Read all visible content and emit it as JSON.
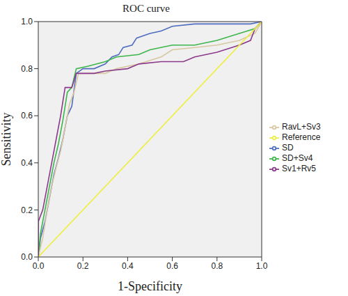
{
  "chart_data": {
    "type": "line",
    "title": "ROC curve",
    "xlabel": "1-Specificity",
    "ylabel": "Sensitivity",
    "xlim": [
      0,
      1
    ],
    "ylim": [
      0,
      1
    ],
    "xticks": [
      {
        "value": 0,
        "label": "0.0"
      },
      0.2,
      0.4,
      0.6,
      0.8,
      {
        "value": 1,
        "label": "1.0"
      }
    ],
    "yticks": [
      {
        "value": 0,
        "label": "0.0"
      },
      0.2,
      0.4,
      0.6,
      0.8,
      {
        "value": 1,
        "label": "1.0"
      }
    ],
    "grid": false,
    "legend": "right",
    "series": [
      {
        "name": "SD",
        "color": "#4f6dc0",
        "x": [
          0,
          0.01,
          0.03,
          0.05,
          0.07,
          0.09,
          0.11,
          0.13,
          0.15,
          0.17,
          0.2,
          0.25,
          0.3,
          0.33,
          0.36,
          0.38,
          0.42,
          0.44,
          0.5,
          0.55,
          0.6,
          0.7,
          0.95,
          1
        ],
        "values": [
          0,
          0.08,
          0.15,
          0.25,
          0.35,
          0.42,
          0.5,
          0.6,
          0.64,
          0.78,
          0.8,
          0.8,
          0.82,
          0.85,
          0.86,
          0.89,
          0.9,
          0.93,
          0.95,
          0.96,
          0.98,
          0.99,
          0.99,
          1
        ]
      },
      {
        "name": "SD+Sv4",
        "color": "#3cb54a",
        "x": [
          0,
          0.01,
          0.03,
          0.05,
          0.07,
          0.09,
          0.11,
          0.13,
          0.15,
          0.17,
          0.22,
          0.3,
          0.35,
          0.45,
          0.5,
          0.6,
          0.7,
          0.8,
          0.9,
          0.97,
          1
        ],
        "values": [
          0,
          0.1,
          0.2,
          0.3,
          0.4,
          0.48,
          0.58,
          0.7,
          0.72,
          0.8,
          0.81,
          0.83,
          0.85,
          0.86,
          0.88,
          0.9,
          0.9,
          0.92,
          0.95,
          0.97,
          1
        ]
      },
      {
        "name": "RavL+Sv3",
        "color": "#d8c8a0",
        "x": [
          0,
          0.02,
          0.04,
          0.06,
          0.08,
          0.1,
          0.12,
          0.14,
          0.16,
          0.18,
          0.3,
          0.35,
          0.45,
          0.55,
          0.6,
          0.7,
          0.8,
          0.9,
          0.97,
          1
        ],
        "values": [
          0,
          0.08,
          0.2,
          0.3,
          0.38,
          0.45,
          0.55,
          0.65,
          0.7,
          0.78,
          0.78,
          0.8,
          0.82,
          0.85,
          0.88,
          0.89,
          0.9,
          0.92,
          0.95,
          1
        ]
      },
      {
        "name": "Sv1+Rv5",
        "color": "#8b3a8b",
        "x": [
          0,
          0,
          0.02,
          0.04,
          0.06,
          0.08,
          0.1,
          0.12,
          0.15,
          0.17,
          0.25,
          0.3,
          0.4,
          0.45,
          0.55,
          0.65,
          0.7,
          0.8,
          0.9,
          0.95,
          0.97,
          1
        ],
        "values": [
          0,
          0.15,
          0.2,
          0.3,
          0.4,
          0.5,
          0.6,
          0.72,
          0.72,
          0.78,
          0.78,
          0.79,
          0.8,
          0.82,
          0.83,
          0.83,
          0.85,
          0.87,
          0.9,
          0.92,
          0.97,
          1
        ]
      },
      {
        "name": "Reference",
        "color": "#eeee44",
        "x": [
          0,
          1
        ],
        "values": [
          0,
          1
        ]
      }
    ]
  }
}
